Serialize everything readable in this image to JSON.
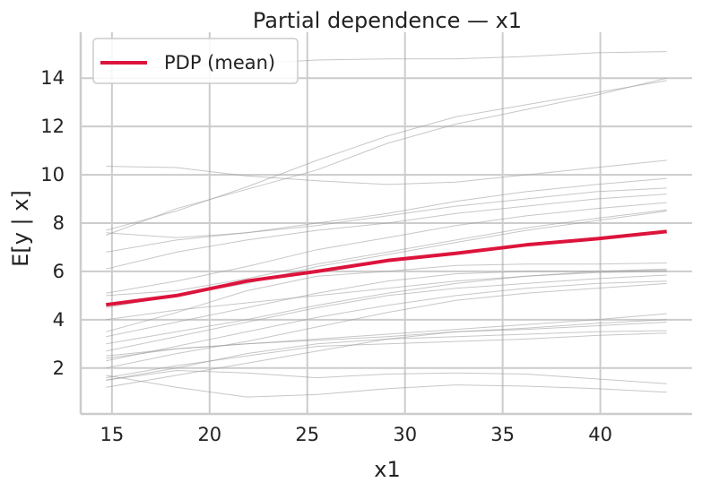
{
  "chart_data": {
    "type": "line",
    "title": "Partial dependence — x1",
    "xlabel": "x1",
    "ylabel": "E[y | x]",
    "xlim": [
      13.4,
      44.7
    ],
    "ylim": [
      0.1,
      15.9
    ],
    "xticks": [
      15,
      20,
      25,
      30,
      35,
      40
    ],
    "yticks": [
      2,
      4,
      6,
      8,
      10,
      12,
      14
    ],
    "grid": true,
    "legend_position": "top-left",
    "x": [
      14.7,
      18.3,
      21.9,
      25.5,
      29.1,
      32.6,
      36.2,
      39.8,
      43.4
    ],
    "series": [
      {
        "name": "PDP (mean)",
        "color": "#dc143c",
        "values": [
          4.62,
          5.0,
          5.6,
          6.0,
          6.45,
          6.75,
          7.1,
          7.35,
          7.65
        ]
      }
    ],
    "ice_color": "#999999",
    "ice_lines": [
      [
        14.3,
        14.5,
        14.6,
        14.75,
        14.8,
        14.8,
        14.9,
        15.05,
        15.1
      ],
      [
        7.7,
        8.5,
        9.5,
        10.6,
        11.6,
        12.4,
        12.9,
        13.4,
        13.9
      ],
      [
        7.5,
        8.6,
        9.4,
        10.2,
        11.3,
        12.1,
        12.7,
        13.3,
        14.0
      ],
      [
        10.35,
        10.3,
        9.95,
        9.75,
        9.6,
        9.7,
        10.0,
        10.3,
        10.6
      ],
      [
        7.6,
        7.4,
        7.6,
        8.0,
        8.4,
        8.9,
        9.3,
        9.6,
        9.85
      ],
      [
        6.8,
        7.3,
        7.6,
        7.9,
        8.3,
        8.7,
        9.0,
        9.3,
        9.45
      ],
      [
        6.1,
        6.8,
        7.3,
        7.7,
        8.0,
        8.4,
        8.7,
        9.0,
        9.2
      ],
      [
        5.1,
        5.6,
        6.2,
        6.9,
        7.4,
        7.9,
        8.3,
        8.6,
        8.85
      ],
      [
        5.0,
        5.2,
        5.7,
        6.3,
        6.8,
        7.3,
        7.8,
        8.2,
        8.55
      ],
      [
        4.5,
        5.0,
        5.5,
        6.2,
        6.7,
        7.2,
        7.7,
        8.1,
        8.5
      ],
      [
        3.5,
        4.3,
        5.2,
        5.8,
        6.0,
        6.25,
        6.3,
        6.3,
        6.35
      ],
      [
        4.0,
        4.4,
        4.7,
        5.0,
        5.3,
        5.6,
        5.8,
        6.0,
        6.1
      ],
      [
        3.3,
        3.9,
        4.5,
        5.1,
        5.6,
        5.9,
        6.0,
        6.0,
        6.05
      ],
      [
        3.0,
        3.5,
        4.0,
        4.6,
        5.1,
        5.5,
        5.8,
        5.95,
        6.0
      ],
      [
        2.7,
        3.3,
        3.9,
        4.5,
        5.0,
        5.3,
        5.5,
        5.7,
        5.85
      ],
      [
        2.3,
        2.9,
        3.5,
        4.1,
        4.6,
        5.0,
        5.3,
        5.5,
        5.6
      ],
      [
        2.0,
        2.6,
        3.1,
        3.7,
        4.3,
        4.8,
        5.1,
        5.3,
        5.5
      ],
      [
        2.4,
        2.8,
        3.0,
        3.2,
        3.4,
        3.6,
        3.8,
        4.0,
        4.25
      ],
      [
        2.5,
        2.8,
        3.0,
        3.15,
        3.3,
        3.5,
        3.65,
        3.85,
        4.0
      ],
      [
        1.5,
        2.0,
        2.6,
        3.0,
        3.2,
        3.3,
        3.4,
        3.5,
        3.55
      ],
      [
        1.6,
        2.1,
        2.5,
        2.9,
        3.0,
        3.1,
        3.2,
        3.35,
        3.45
      ],
      [
        1.2,
        1.7,
        2.2,
        2.7,
        3.2,
        3.5,
        3.6,
        3.75,
        3.9
      ],
      [
        1.5,
        1.9,
        1.8,
        1.6,
        1.75,
        1.8,
        1.75,
        1.55,
        1.35
      ],
      [
        1.7,
        1.2,
        0.8,
        0.9,
        1.15,
        1.3,
        1.25,
        1.15,
        1.0
      ]
    ]
  }
}
